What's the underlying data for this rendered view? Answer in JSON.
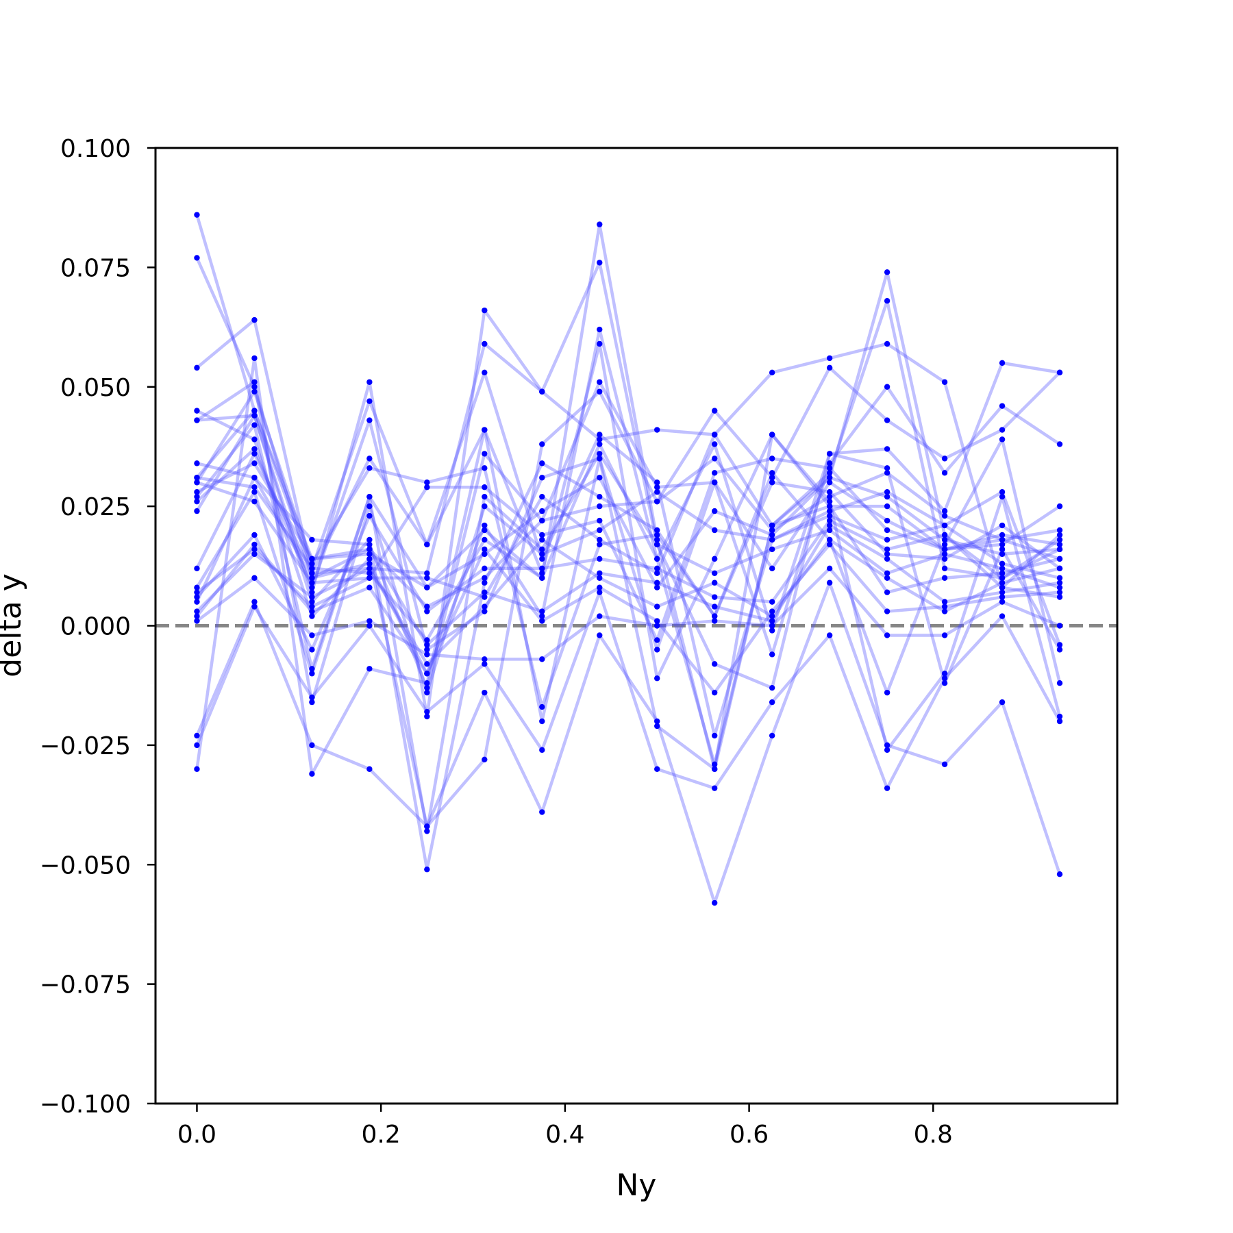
{
  "chart_data": {
    "type": "line",
    "title": "",
    "xlabel": "Ny",
    "ylabel": "delta y",
    "xlim": [
      -0.045,
      1.0
    ],
    "ylim": [
      -0.1,
      0.1
    ],
    "x_ticks": [
      "0.0",
      "0.2",
      "0.4",
      "0.6",
      "0.8"
    ],
    "y_ticks": [
      "−0.100",
      "−0.075",
      "−0.050",
      "−0.025",
      "0.000",
      "0.025",
      "0.050",
      "0.075",
      "0.100"
    ],
    "x_tick_values": [
      0.0,
      0.2,
      0.4,
      0.6,
      0.8
    ],
    "y_tick_values": [
      -0.1,
      -0.075,
      -0.05,
      -0.025,
      0.0,
      0.025,
      0.05,
      0.075,
      0.1
    ],
    "grid": false,
    "legend": "none",
    "reference_line": {
      "y": 0.0,
      "style": "dashed",
      "color": "#808080"
    },
    "line_color": "#4a4aff",
    "line_alpha": 0.35,
    "marker_color": "#0000ff",
    "x": [
      0.0,
      0.0625,
      0.125,
      0.1875,
      0.25,
      0.3125,
      0.375,
      0.4375,
      0.5,
      0.5625,
      0.625,
      0.6875,
      0.75,
      0.8125,
      0.875,
      0.9375
    ],
    "series": [
      {
        "values": [
          0.086,
          0.045,
          0.012,
          0.011,
          -0.003,
          0.018,
          0.01,
          0.084,
          0.018,
          -0.03,
          0.021,
          0.031,
          0.074,
          0.019,
          0.01,
          0.018
        ]
      },
      {
        "values": [
          0.077,
          0.05,
          0.01,
          0.013,
          -0.01,
          0.021,
          0.002,
          0.062,
          0.014,
          -0.029,
          0.021,
          0.032,
          0.068,
          0.012,
          0.01,
          0.016
        ]
      },
      {
        "values": [
          0.054,
          0.064,
          0.011,
          0.012,
          0.011,
          0.059,
          0.049,
          0.039,
          0.041,
          0.04,
          0.053,
          0.056,
          0.059,
          0.051,
          0.008,
          0.019
        ]
      },
      {
        "values": [
          0.045,
          0.039,
          0.002,
          0.014,
          -0.042,
          -0.028,
          0.038,
          0.049,
          0.026,
          0.045,
          0.031,
          0.054,
          0.043,
          0.035,
          0.041,
          0.053
        ]
      },
      {
        "values": [
          0.043,
          0.044,
          0.007,
          0.051,
          -0.019,
          0.066,
          0.049,
          0.076,
          0.017,
          -0.008,
          -0.013,
          0.036,
          0.037,
          0.024,
          0.055,
          0.053
        ]
      },
      {
        "values": [
          0.034,
          0.031,
          0.018,
          0.017,
          -0.013,
          0.036,
          0.022,
          0.051,
          0.029,
          0.03,
          -0.006,
          0.034,
          0.05,
          0.032,
          0.046,
          0.038
        ]
      },
      {
        "values": [
          0.031,
          0.029,
          0.012,
          0.047,
          0.017,
          0.041,
          0.011,
          0.059,
          -0.011,
          0.014,
          0.04,
          0.025,
          0.025,
          0.016,
          0.017,
          0.025
        ]
      },
      {
        "values": [
          0.03,
          0.026,
          0.009,
          0.01,
          0.029,
          0.029,
          0.019,
          0.022,
          -0.003,
          0.032,
          0.035,
          0.033,
          0.02,
          0.016,
          0.018,
          0.014
        ]
      },
      {
        "values": [
          0.028,
          0.034,
          0.014,
          0.015,
          0.008,
          0.015,
          0.024,
          0.031,
          0.008,
          0.024,
          0.019,
          0.031,
          0.027,
          0.018,
          0.015,
          0.016
        ]
      },
      {
        "values": [
          0.026,
          0.037,
          0.008,
          0.043,
          -0.005,
          0.003,
          0.031,
          0.035,
          -0.005,
          0.03,
          0.012,
          0.03,
          0.022,
          0.016,
          0.019,
          0.017
        ]
      },
      {
        "values": [
          0.024,
          0.044,
          0.005,
          0.018,
          -0.051,
          0.009,
          0.034,
          0.027,
          0.02,
          0.002,
          0.03,
          0.028,
          0.015,
          0.014,
          0.021,
          0.012
        ]
      },
      {
        "values": [
          0.012,
          0.036,
          0.011,
          0.035,
          0.017,
          0.053,
          0.014,
          0.04,
          0.03,
          -0.023,
          0.018,
          0.023,
          0.018,
          0.021,
          0.013,
          0.01
        ]
      },
      {
        "values": [
          0.008,
          0.028,
          -0.01,
          0.027,
          -0.043,
          0.027,
          0.016,
          0.036,
          0.017,
          0.011,
          0.016,
          0.02,
          0.011,
          0.015,
          0.012,
          0.008
        ]
      },
      {
        "values": [
          0.007,
          0.016,
          0.004,
          0.01,
          0.01,
          0.006,
          0.027,
          0.018,
          0.011,
          0.04,
          0.021,
          0.025,
          0.007,
          0.01,
          0.011,
          0.014
        ]
      },
      {
        "values": [
          0.006,
          0.019,
          -0.005,
          0.023,
          0.003,
          0.012,
          0.012,
          0.014,
          0.012,
          0.006,
          0.005,
          0.022,
          0.016,
          0.019,
          0.008,
          0.006
        ]
      },
      {
        "values": [
          0.005,
          0.031,
          0.01,
          0.016,
          -0.004,
          0.007,
          0.003,
          0.011,
          0.009,
          0.004,
          0.001,
          0.021,
          0.014,
          0.005,
          0.007,
          0.009
        ]
      },
      {
        "values": [
          0.003,
          0.015,
          0.006,
          0.012,
          -0.008,
          0.004,
          0.018,
          0.01,
          0.004,
          0.009,
          0.002,
          0.018,
          0.01,
          0.003,
          0.009,
          0.012
        ]
      },
      {
        "values": [
          0.002,
          0.017,
          0.003,
          0.008,
          -0.01,
          0.016,
          0.001,
          0.008,
          0.001,
          -0.014,
          0.003,
          0.017,
          0.003,
          0.004,
          0.006,
          0.007
        ]
      },
      {
        "values": [
          0.001,
          0.01,
          -0.002,
          0.001,
          -0.006,
          -0.007,
          -0.007,
          0.002,
          0.0,
          0.001,
          0.0,
          0.012,
          -0.002,
          -0.002,
          0.005,
          0.0
        ]
      },
      {
        "values": [
          -0.023,
          0.005,
          -0.025,
          -0.03,
          -0.042,
          -0.014,
          -0.039,
          -0.002,
          -0.02,
          -0.058,
          -0.023,
          0.009,
          -0.025,
          -0.029,
          -0.016,
          -0.052
        ]
      },
      {
        "values": [
          -0.025,
          0.004,
          -0.015,
          0.0,
          -0.018,
          -0.008,
          -0.026,
          0.007,
          -0.03,
          -0.034,
          -0.016,
          -0.002,
          -0.034,
          -0.011,
          0.002,
          -0.02
        ]
      },
      {
        "values": [
          -0.03,
          0.056,
          -0.031,
          -0.009,
          -0.012,
          0.041,
          -0.02,
          0.035,
          -0.021,
          -0.03,
          0.04,
          0.026,
          -0.026,
          -0.01,
          0.027,
          -0.019
        ]
      },
      {
        "values": [
          0.03,
          0.049,
          0.013,
          0.033,
          0.03,
          0.033,
          -0.017,
          0.017,
          0.019,
          0.002,
          0.032,
          0.018,
          -0.014,
          0.017,
          0.039,
          -0.012
        ]
      },
      {
        "values": [
          0.027,
          0.042,
          -0.009,
          0.027,
          0.008,
          0.02,
          0.01,
          0.038,
          0.014,
          0.038,
          -0.001,
          0.036,
          0.033,
          -0.012,
          0.016,
          -0.005
        ]
      },
      {
        "values": [
          0.043,
          0.051,
          -0.016,
          0.025,
          -0.014,
          0.025,
          0.015,
          0.02,
          0.028,
          0.02,
          0.018,
          0.024,
          0.028,
          0.021,
          0.028,
          -0.004
        ]
      },
      {
        "values": [
          0.031,
          0.045,
          0.014,
          0.016,
          0.004,
          0.01,
          0.022,
          0.025,
          0.026,
          0.035,
          0.02,
          0.027,
          0.032,
          0.023,
          0.018,
          0.02
        ]
      }
    ]
  }
}
